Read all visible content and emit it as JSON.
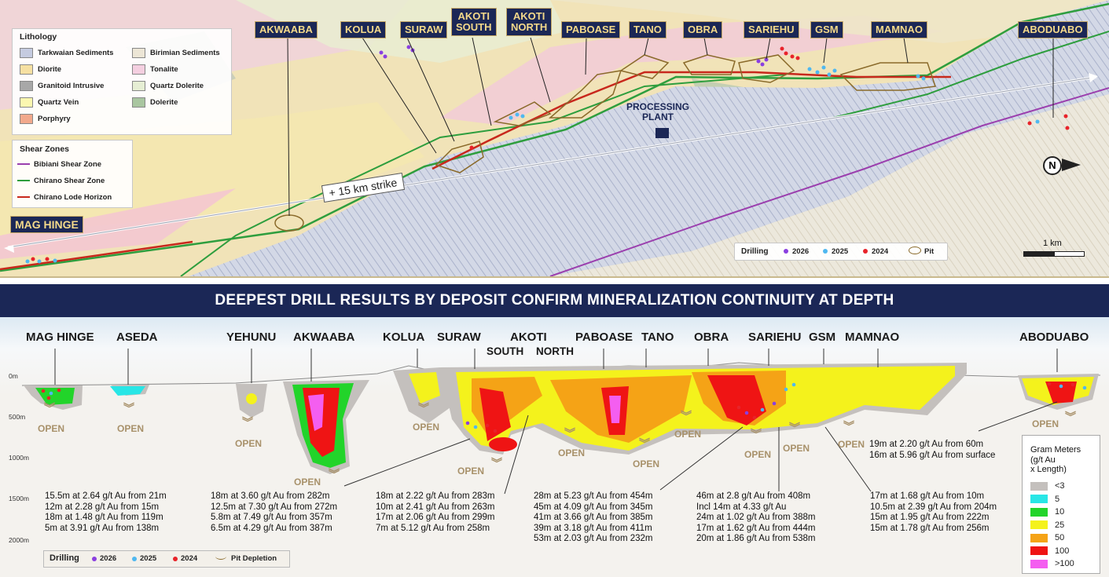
{
  "map": {
    "deposit_labels": {
      "akwaaba": "AKWAABA",
      "kolua": "KOLUA",
      "suraw": "SURAW",
      "akoti_south_1": "AKOTI",
      "akoti_south_2": "SOUTH",
      "akoti_north_1": "AKOTI",
      "akoti_north_2": "NORTH",
      "paboase": "PABOASE",
      "tano": "TANO",
      "obra": "OBRA",
      "sariehu": "SARIEHU",
      "gsm": "GSM",
      "mamnao": "MAMNAO",
      "aboduabo": "ABODUABO",
      "mag_hinge": "MAG HINGE"
    },
    "processing_plant_1": "PROCESSING",
    "processing_plant_2": "PLANT",
    "strike_label": "+ 15 km strike",
    "north_label": "N",
    "scale_label": "1 km",
    "lithology": {
      "title": "Lithology",
      "items": [
        {
          "label": "Tarkwaian Sediments",
          "color": "#c5cbe0"
        },
        {
          "label": "Birimian Sediments",
          "color": "#ece6d6"
        },
        {
          "label": "Diorite",
          "color": "#f6e0a2"
        },
        {
          "label": "Tonalite",
          "color": "#f4cfe0"
        },
        {
          "label": "Granitoid Intrusive",
          "color": "#a8a8a8"
        },
        {
          "label": "Quartz Dolerite",
          "color": "#e6eed4"
        },
        {
          "label": "Quartz Vein",
          "color": "#fbf7b0"
        },
        {
          "label": "Dolerite",
          "color": "#a9c6a0"
        },
        {
          "label": "Porphyry",
          "color": "#f2a98c"
        }
      ]
    },
    "shear_zones": {
      "title": "Shear Zones",
      "items": [
        {
          "label": "Bibiani Shear Zone",
          "color": "#9b3fae"
        },
        {
          "label": "Chirano Shear Zone",
          "color": "#2e9e3e"
        },
        {
          "label": "Chirano Lode Horizon",
          "color": "#c8281c"
        }
      ]
    },
    "drilling_legend": {
      "title": "Drilling",
      "y2026": "2026",
      "y2025": "2025",
      "y2024": "2024",
      "pit": "Pit"
    }
  },
  "banner": "DEEPEST DRILL RESULTS BY DEPOSIT CONFIRM MINERALIZATION CONTINUITY AT DEPTH",
  "section": {
    "labels": {
      "mag_hinge": "MAG HINGE",
      "aseda": "ASEDA",
      "yehunu": "YEHUNU",
      "akwaaba": "AKWAABA",
      "kolua": "KOLUA",
      "suraw": "SURAW",
      "akoti": "AKOTI",
      "south": "SOUTH",
      "north": "NORTH",
      "paboase": "PABOASE",
      "tano": "TANO",
      "obra": "OBRA",
      "sariehu": "SARIEHU",
      "gsm": "GSM",
      "mamnao": "MAMNAO",
      "aboduabo": "ABODUABO"
    },
    "depths": [
      "0m",
      "500m",
      "1000m",
      "1500m",
      "2000m"
    ],
    "open_label": "OPEN",
    "results": {
      "mag_hinge": "15.5m at 2.64 g/t Au from 21m\n12m at 2.28 g/t Au from 15m\n18m at 1.48 g/t Au from 119m\n5m at 3.91 g/t Au from 138m",
      "akwaaba": "18m at 3.60 g/t Au from 282m\n12.5m at 7.30 g/t Au from 272m\n5.8m at 7.49 g/t Au from 357m\n6.5m at 4.29 g/t Au from 387m",
      "suraw": "18m at 2.22 g/t Au from 283m\n10m at 2.41 g/t Au from 263m\n17m at 2.06 g/t Au from 299m\n7m at 5.12 g/t Au from 258m",
      "paboase": "28m at 5.23 g/t Au from 454m\n45m at 4.09 g/t Au from 345m\n41m at 3.66 g/t Au from 385m\n39m at 3.18 g/t Au from 411m\n53m at 2.03 g/t Au from 232m",
      "sariehu": "46m at 2.8 g/t Au from 408m\nIncl 14m at 4.33 g/t Au\n24m at 1.02 g/t Au from 388m\n17m at 1.62 g/t Au from 444m\n20m at 1.86 g/t Au from 538m",
      "mamnao": "17m at 1.68 g/t Au from 10m\n10.5m at 2.39 g/t Au from 204m\n15m at 1.95 g/t Au from 222m\n15m at 1.78 g/t Au from 256m",
      "aboduabo": "19m at 2.20 g/t Au from 60m\n16m at 5.96 g/t Au from surface"
    },
    "gram_meters": {
      "title": "Gram Meters\n(g/t Au\nx Length)",
      "items": [
        {
          "label": "<3",
          "color": "#c4c0bd"
        },
        {
          "label": "5",
          "color": "#28e6e6"
        },
        {
          "label": "10",
          "color": "#22d42a"
        },
        {
          "label": "25",
          "color": "#f4f21c"
        },
        {
          "label": "50",
          "color": "#f5a316"
        },
        {
          "label": "100",
          "color": "#ef1414"
        },
        {
          "label": ">100",
          "color": "#f45ef0"
        }
      ]
    },
    "drilling_legend": {
      "title": "Drilling",
      "y2026": "2026",
      "y2025": "2025",
      "y2024": "2024",
      "pit": "Pit Depletion"
    }
  },
  "colors": {
    "navy": "#1b2756",
    "gold": "#c5a866",
    "drill_2026": "#8a3fe0",
    "drill_2025": "#4fb8f0",
    "drill_2024": "#e8232a"
  }
}
